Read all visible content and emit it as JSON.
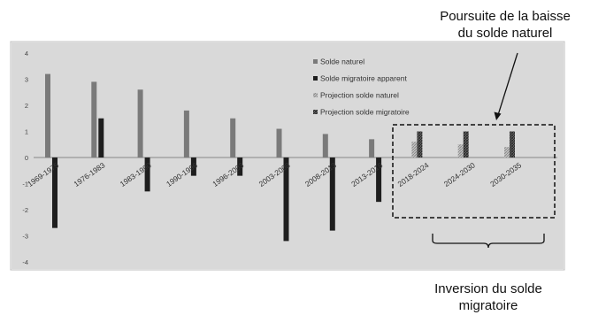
{
  "chart_data": {
    "type": "bar",
    "categories": [
      "1969-1975",
      "1976-1983",
      "1983-1990",
      "1990-1996",
      "1996-2003",
      "2003-2008",
      "2008-2013",
      "2013-2018",
      "2018-2024",
      "2024-2030",
      "2030-2035"
    ],
    "series": [
      {
        "name": "Solde naturel",
        "values": [
          3.2,
          2.9,
          2.6,
          1.8,
          1.5,
          1.1,
          0.9,
          0.7,
          null,
          null,
          null
        ],
        "color": "#7a7a7a",
        "style": "solid"
      },
      {
        "name": "Solde migratoire apparent",
        "values": [
          -2.7,
          1.5,
          -1.3,
          -0.7,
          -0.7,
          -3.2,
          -2.8,
          -1.7,
          null,
          null,
          null
        ],
        "color": "#1e1e1e",
        "style": "solid"
      },
      {
        "name": "Projection solde naturel",
        "values": [
          null,
          null,
          null,
          null,
          null,
          null,
          null,
          null,
          0.6,
          0.5,
          0.4
        ],
        "color": "#9a9a9a",
        "style": "hatch-light"
      },
      {
        "name": "Projection solde migratoire",
        "values": [
          null,
          null,
          null,
          null,
          null,
          null,
          null,
          null,
          1.0,
          1.0,
          1.0
        ],
        "color": "#4a4a4a",
        "style": "hatch-dark"
      }
    ],
    "ylim": [
      -4,
      4
    ],
    "yticks": [
      -4,
      -3,
      -2,
      -1,
      0,
      1,
      2,
      3,
      4
    ],
    "grid": false,
    "legend_position": "top-right",
    "background": "#d9d9d9"
  },
  "annotations": {
    "top_line1": "Poursuite de la baisse",
    "top_line2": "du solde naturel",
    "bottom_line1": "Inversion du solde",
    "bottom_line2": "migratoire"
  }
}
